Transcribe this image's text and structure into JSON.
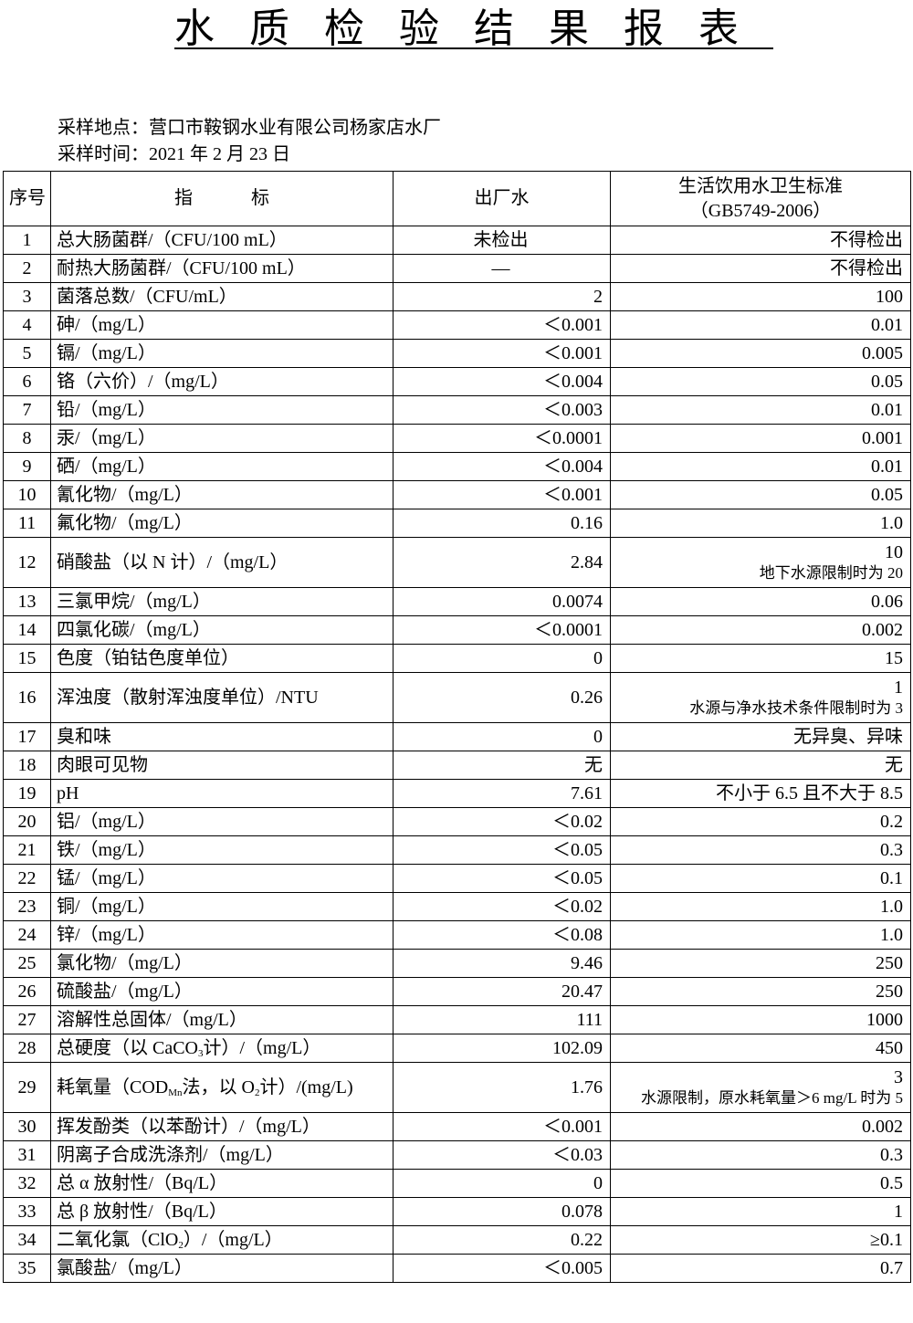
{
  "header": {
    "title": "水质检验结果报表",
    "location_label": "采样地点：",
    "location": "营口市鞍钢水业有限公司杨家店水厂",
    "time_label": "采样时间：",
    "time": "2021 年 2 月 23 日"
  },
  "table": {
    "columns": {
      "no": "序号",
      "item": "指标",
      "value": "出厂水",
      "standard": "生活饮用水卫生标准",
      "standard_code": "（GB5749-2006）"
    },
    "rows": [
      [
        1,
        "总大肠菌群/（CFU/100 mL）",
        "未检出",
        "不得检出"
      ],
      [
        2,
        "耐热大肠菌群/（CFU/100 mL）",
        "—",
        "不得检出"
      ],
      [
        3,
        "菌落总数/（CFU/mL）",
        "2",
        "100"
      ],
      [
        4,
        "砷/（mg/L）",
        "＜0.001",
        "0.01"
      ],
      [
        5,
        "镉/（mg/L）",
        "＜0.001",
        "0.005"
      ],
      [
        6,
        "铬（六价）/（mg/L）",
        "＜0.004",
        "0.05"
      ],
      [
        7,
        "铅/（mg/L）",
        "＜0.003",
        "0.01"
      ],
      [
        8,
        "汞/（mg/L）",
        "＜0.0001",
        "0.001"
      ],
      [
        9,
        "硒/（mg/L）",
        "＜0.004",
        "0.01"
      ],
      [
        10,
        "氰化物/（mg/L）",
        "＜0.001",
        "0.05"
      ],
      [
        11,
        "氟化物/（mg/L）",
        "0.16",
        "1.0"
      ],
      [
        12,
        "硝酸盐（以 N 计）/（mg/L）",
        "2.84",
        "10",
        "地下水源限制时为 20"
      ],
      [
        13,
        "三氯甲烷/（mg/L）",
        "0.0074",
        "0.06"
      ],
      [
        14,
        "四氯化碳/（mg/L）",
        "＜0.0001",
        "0.002"
      ],
      [
        15,
        "色度（铂钴色度单位）",
        "0",
        "15"
      ],
      [
        16,
        "浑浊度（散射浑浊度单位）/NTU",
        "0.26",
        "1",
        "水源与净水技术条件限制时为 3"
      ],
      [
        17,
        "臭和味",
        "0",
        "无异臭、异味"
      ],
      [
        18,
        "肉眼可见物",
        "无",
        "无"
      ],
      [
        19,
        "pH",
        "7.61",
        "不小于 6.5 且不大于 8.5"
      ],
      [
        20,
        "铝/（mg/L）",
        "＜0.02",
        "0.2"
      ],
      [
        21,
        "铁/（mg/L）",
        "＜0.05",
        "0.3"
      ],
      [
        22,
        "锰/（mg/L）",
        "＜0.05",
        "0.1"
      ],
      [
        23,
        "铜/（mg/L）",
        "＜0.02",
        "1.0"
      ],
      [
        24,
        "锌/（mg/L）",
        "＜0.08",
        "1.0"
      ],
      [
        25,
        "氯化物/（mg/L）",
        "9.46",
        "250"
      ],
      [
        26,
        "硫酸盐/（mg/L）",
        "20.47",
        "250"
      ],
      [
        27,
        "溶解性总固体/（mg/L）",
        "111",
        "1000"
      ],
      [
        28,
        [
          "总硬度（以 CaCO",
          {
            "sub": "3"
          },
          "计）/（mg/L）"
        ],
        "102.09",
        "450"
      ],
      [
        29,
        [
          "耗氧量（COD",
          {
            "sub": "Mn"
          },
          "法，以 O",
          {
            "sub": "2"
          },
          "计）/(mg/L)"
        ],
        "1.76",
        "3",
        "水源限制，原水耗氧量＞6 mg/L 时为 5"
      ],
      [
        30,
        "挥发酚类（以苯酚计）/（mg/L）",
        "＜0.001",
        "0.002"
      ],
      [
        31,
        "阴离子合成洗涤剂/（mg/L）",
        "＜0.03",
        "0.3"
      ],
      [
        32,
        "总 α 放射性/（Bq/L）",
        "0",
        "0.5"
      ],
      [
        33,
        "总 β 放射性/（Bq/L）",
        "0.078",
        "1"
      ],
      [
        34,
        [
          "二氧化氯（ClO",
          {
            "sub": "2"
          },
          "）/（mg/L）"
        ],
        "0.22",
        "≥0.1"
      ],
      [
        35,
        "氯酸盐/（mg/L）",
        "＜0.005",
        "0.7"
      ]
    ]
  }
}
